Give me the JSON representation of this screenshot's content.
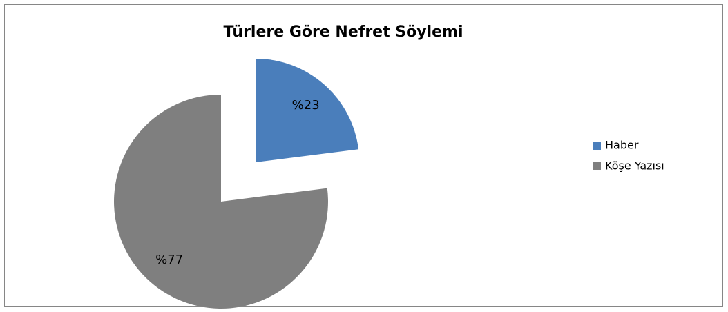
{
  "chart_data": {
    "type": "pie",
    "title": "Türlere Göre Nefret Söylemi",
    "categories": [
      "Haber",
      "Köşe Yazısı"
    ],
    "values": [
      23,
      77
    ],
    "value_labels": [
      "%23",
      "%77"
    ],
    "colors": [
      "#4a7ebb",
      "#7f7f7f"
    ],
    "legend": "right"
  }
}
